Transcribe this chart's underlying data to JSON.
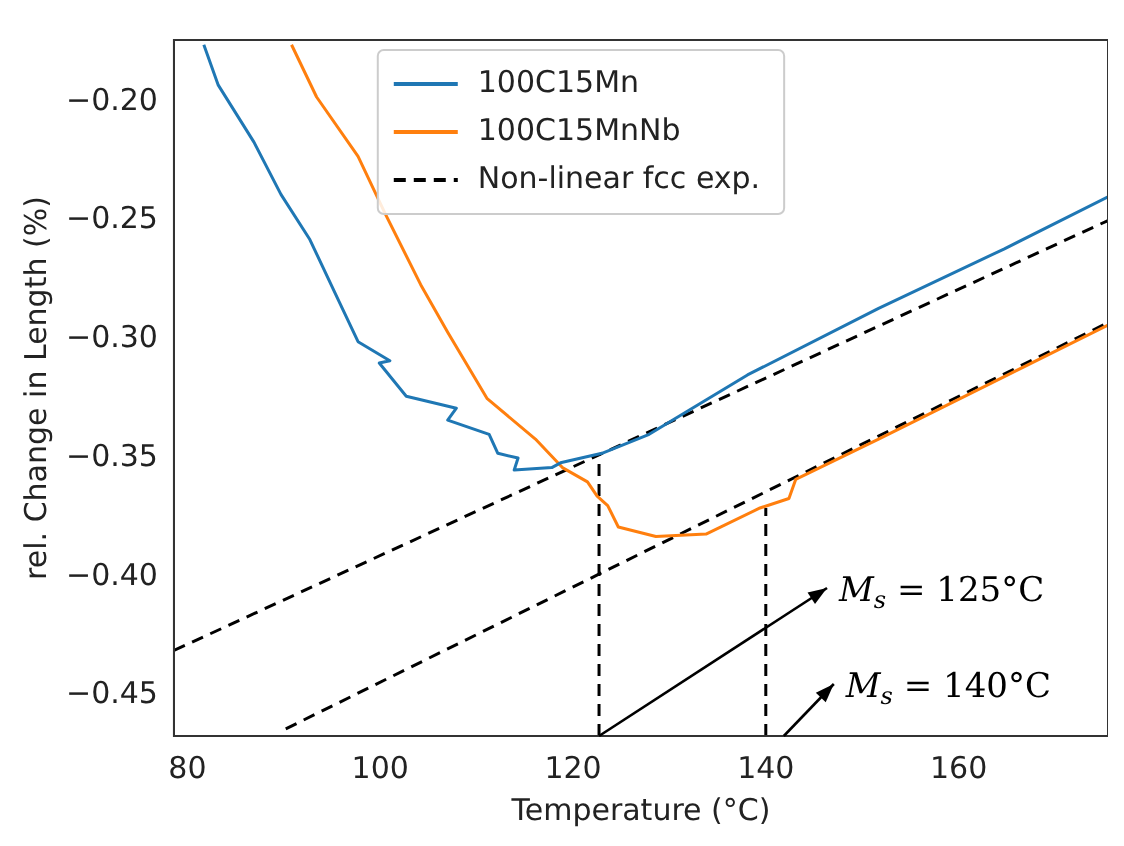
{
  "chart_data": {
    "type": "line",
    "xlabel": "Temperature (°C)",
    "ylabel": "rel. Change in Length (%)",
    "xlim": [
      78.6,
      175.5
    ],
    "xticks": [
      80,
      100,
      120,
      140,
      160
    ],
    "ylim": [
      -0.467,
      -0.174
    ],
    "yticks": [
      {
        "value": -0.45,
        "label": "−0.45"
      },
      {
        "value": -0.4,
        "label": "−0.40"
      },
      {
        "value": -0.35,
        "label": "−0.35"
      },
      {
        "value": -0.3,
        "label": "−0.30"
      },
      {
        "value": -0.25,
        "label": "−0.25"
      },
      {
        "value": -0.2,
        "label": "−0.20"
      }
    ],
    "grid": false,
    "legend": "top",
    "marker": "none",
    "series": [
      {
        "name": "100C15Mn",
        "color": "#1f77b4",
        "line_style": "solid",
        "x": [
          81.7,
          83.2,
          86.9,
          89.7,
          92.7,
          95.6,
          97.7,
          101.0,
          99.9,
          102.7,
          107.9,
          107.0,
          111.3,
          112.2,
          114.3,
          113.9,
          117.8,
          118.7,
          123.0,
          127.9,
          138.1,
          151.7,
          164.7,
          175.5
        ],
        "values": [
          -0.176,
          -0.193,
          -0.217,
          -0.239,
          -0.258,
          -0.283,
          -0.301,
          -0.309,
          -0.31,
          -0.324,
          -0.329,
          -0.334,
          -0.34,
          -0.348,
          -0.35,
          -0.355,
          -0.354,
          -0.352,
          -0.348,
          -0.34,
          -0.315,
          -0.287,
          -0.262,
          -0.24
        ]
      },
      {
        "name": "100C15MnNb",
        "color": "#ff7f0e",
        "line_style": "solid",
        "x": [
          90.8,
          93.4,
          97.7,
          100.5,
          104.2,
          107.0,
          111.1,
          116.1,
          118.9,
          121.5,
          122.5,
          123.6,
          124.7,
          128.6,
          133.8,
          139.4,
          142.4,
          143.1,
          151.7,
          163.6,
          175.5
        ],
        "values": [
          -0.176,
          -0.198,
          -0.223,
          -0.247,
          -0.277,
          -0.297,
          -0.325,
          -0.342,
          -0.354,
          -0.36,
          -0.366,
          -0.37,
          -0.379,
          -0.383,
          -0.382,
          -0.371,
          -0.367,
          -0.359,
          -0.342,
          -0.318,
          -0.294
        ]
      },
      {
        "name": "Non-linear fcc exp.",
        "color": "#000000",
        "line_style": "dashed",
        "x": [
          78.6,
          175.5
        ],
        "values": [
          -0.431,
          -0.25
        ]
      },
      {
        "color": "#000000",
        "line_style": "dashed",
        "x": [
          90.2,
          175.5
        ],
        "values": [
          -0.464,
          -0.293
        ]
      },
      {
        "color": "#000000",
        "line_style": "dashed",
        "x": [
          122.7,
          122.7
        ],
        "values": [
          -0.467,
          -0.348
        ]
      },
      {
        "color": "#000000",
        "line_style": "dashed",
        "x": [
          140,
          140
        ],
        "values": [
          -0.467,
          -0.371
        ]
      }
    ],
    "annotations": [
      {
        "text": "M$_{s}$ = 125°C",
        "x": 122.7,
        "y": -0.467
      },
      {
        "text": "M$_{s}$ = 140°C",
        "x": 140,
        "y": -0.467
      }
    ]
  }
}
